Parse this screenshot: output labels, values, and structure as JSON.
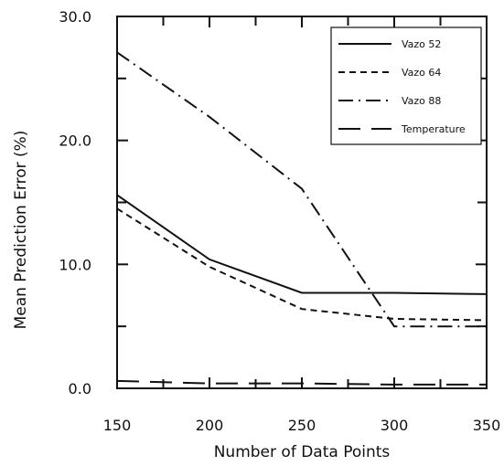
{
  "chart_data": {
    "type": "line",
    "xlabel": "Number of Data Points",
    "ylabel": "Mean Prediction Error (%)",
    "xlim": [
      150,
      350
    ],
    "ylim": [
      0,
      30
    ],
    "x_ticks": [
      150,
      200,
      250,
      300,
      350
    ],
    "x_tick_labels": [
      "150",
      "200",
      "250",
      "300",
      "350"
    ],
    "y_ticks": [
      0,
      10,
      20,
      30
    ],
    "y_tick_labels": [
      "0.0",
      "10.0",
      "20.0",
      "30.0"
    ],
    "grid": false,
    "legend_position": "top-right",
    "series": [
      {
        "name": "Vazo 52",
        "dash": "solid",
        "points": [
          [
            150,
            15.6
          ],
          [
            200,
            10.4
          ],
          [
            250,
            7.7
          ],
          [
            300,
            7.7
          ],
          [
            350,
            7.6
          ]
        ]
      },
      {
        "name": "Vazo 64",
        "dash": "short-dash",
        "points": [
          [
            150,
            14.5
          ],
          [
            200,
            9.8
          ],
          [
            250,
            6.4
          ],
          [
            300,
            5.6
          ],
          [
            350,
            5.5
          ]
        ]
      },
      {
        "name": "Vazo 88",
        "dash": "dash-dot",
        "points": [
          [
            150,
            27.1
          ],
          [
            200,
            21.9
          ],
          [
            250,
            16.1
          ],
          [
            300,
            5.0
          ],
          [
            350,
            5.0
          ]
        ]
      },
      {
        "name": "Temperature",
        "dash": "long-dash",
        "points": [
          [
            150,
            0.6
          ],
          [
            200,
            0.4
          ],
          [
            250,
            0.4
          ],
          [
            300,
            0.3
          ],
          [
            350,
            0.3
          ]
        ]
      }
    ]
  }
}
